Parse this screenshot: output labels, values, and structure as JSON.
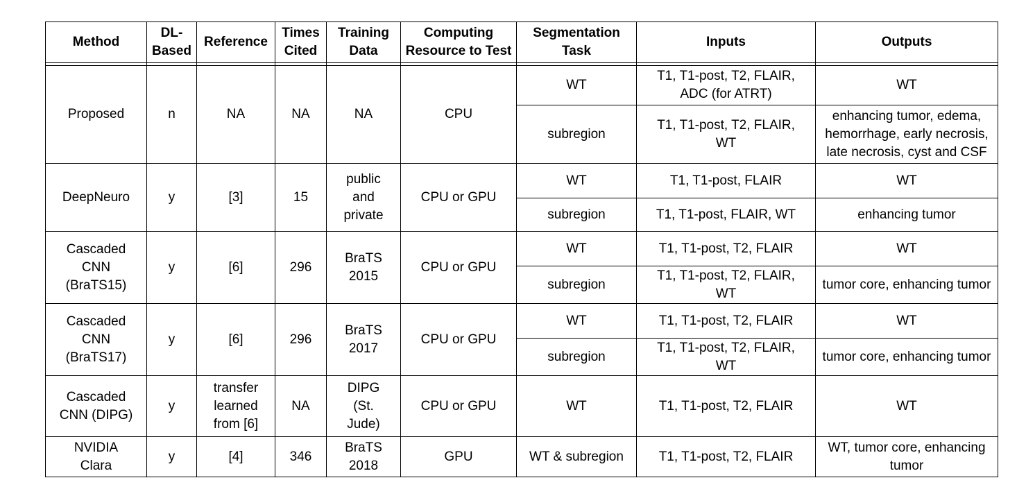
{
  "headers": {
    "method": "Method",
    "dl_based": "DL-\nBased",
    "reference": "Reference",
    "times_cited": "Times\nCited",
    "training_data": "Training\nData",
    "computing": "Computing\nResource to Test",
    "task": "Segmentation\nTask",
    "inputs": "Inputs",
    "outputs": "Outputs"
  },
  "rows": [
    {
      "method": "Proposed",
      "dl_based": "n",
      "reference": "NA",
      "times_cited": "NA",
      "training_data": "NA",
      "computing": "CPU",
      "tasks": [
        {
          "task": "WT",
          "inputs": "T1, T1-post, T2, FLAIR, ADC (for ATRT)",
          "outputs": "WT"
        },
        {
          "task": "subregion",
          "inputs": "T1, T1-post, T2, FLAIR, WT",
          "outputs": "enhancing tumor, edema, hemorrhage, early necrosis, late necrosis, cyst and CSF"
        }
      ]
    },
    {
      "method": "DeepNeuro",
      "dl_based": "y",
      "reference": "[3]",
      "times_cited": "15",
      "training_data": "public and private",
      "computing": "CPU or GPU",
      "tasks": [
        {
          "task": "WT",
          "inputs": "T1, T1-post, FLAIR",
          "outputs": "WT"
        },
        {
          "task": "subregion",
          "inputs": "T1, T1-post, FLAIR, WT",
          "outputs": "enhancing tumor"
        }
      ]
    },
    {
      "method": "Cascaded CNN (BraTS15)",
      "dl_based": "y",
      "reference": "[6]",
      "times_cited": "296",
      "training_data": "BraTS 2015",
      "computing": "CPU or GPU",
      "tasks": [
        {
          "task": "WT",
          "inputs": "T1, T1-post, T2, FLAIR",
          "outputs": "WT"
        },
        {
          "task": "subregion",
          "inputs": "T1, T1-post, T2, FLAIR, WT",
          "outputs": "tumor core, enhancing tumor"
        }
      ]
    },
    {
      "method": "Cascaded CNN (BraTS17)",
      "dl_based": "y",
      "reference": "[6]",
      "times_cited": "296",
      "training_data": "BraTS 2017",
      "computing": "CPU or GPU",
      "tasks": [
        {
          "task": "WT",
          "inputs": "T1, T1-post, T2, FLAIR",
          "outputs": "WT"
        },
        {
          "task": "subregion",
          "inputs": "T1, T1-post, T2, FLAIR, WT",
          "outputs": "tumor core, enhancing tumor"
        }
      ]
    },
    {
      "method": "Cascaded CNN (DIPG)",
      "dl_based": "y",
      "reference": "transfer learned from [6]",
      "times_cited": "NA",
      "training_data": "DIPG (St. Jude)",
      "computing": "CPU or GPU",
      "tasks": [
        {
          "task": "WT",
          "inputs": "T1, T1-post, T2, FLAIR",
          "outputs": "WT"
        }
      ]
    },
    {
      "method": "NVIDIA Clara",
      "dl_based": "y",
      "reference": "[4]",
      "times_cited": "346",
      "training_data": "BraTS 2018",
      "computing": "GPU",
      "tasks": [
        {
          "task": "WT & subregion",
          "inputs": "T1, T1-post, T2, FLAIR",
          "outputs": "WT, tumor core, enhancing tumor"
        }
      ]
    }
  ]
}
